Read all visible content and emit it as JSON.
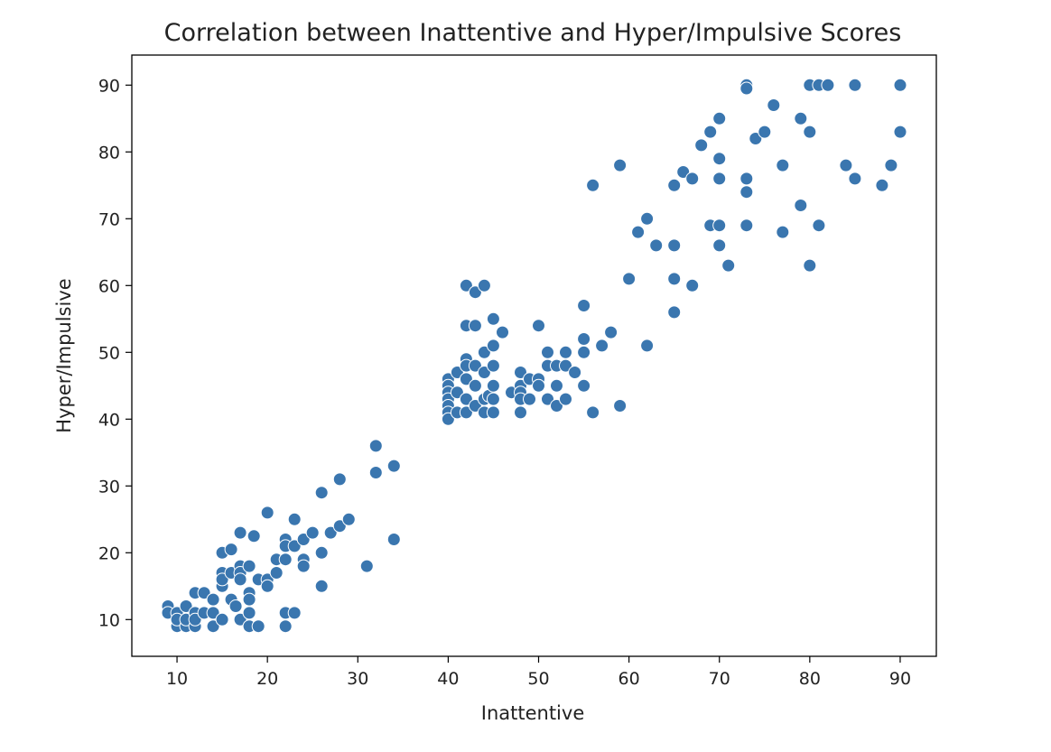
{
  "chart_data": {
    "type": "scatter",
    "title": "Correlation between Inattentive and Hyper/Impulsive Scores",
    "xlabel": "Inattentive",
    "ylabel": "Hyper/Impulsive",
    "xlim": [
      5,
      94
    ],
    "ylim": [
      4.5,
      94.5
    ],
    "xticks": [
      10,
      20,
      30,
      40,
      50,
      60,
      70,
      80,
      90
    ],
    "yticks": [
      10,
      20,
      30,
      40,
      50,
      60,
      70,
      80,
      90
    ],
    "grid": false,
    "marker_color": "#3a76af",
    "marker_edge_color": "#ffffff",
    "points": [
      [
        9,
        12
      ],
      [
        9,
        11
      ],
      [
        10,
        9
      ],
      [
        10,
        11
      ],
      [
        10,
        10
      ],
      [
        11,
        9
      ],
      [
        11,
        12
      ],
      [
        11,
        10
      ],
      [
        12,
        14
      ],
      [
        12,
        9
      ],
      [
        12,
        11
      ],
      [
        12,
        10
      ],
      [
        13,
        14
      ],
      [
        13,
        11
      ],
      [
        14,
        13
      ],
      [
        14,
        9
      ],
      [
        14,
        11
      ],
      [
        15,
        10
      ],
      [
        15,
        20
      ],
      [
        15,
        17
      ],
      [
        15,
        15
      ],
      [
        15,
        16
      ],
      [
        16,
        20.5
      ],
      [
        16,
        13
      ],
      [
        16,
        17
      ],
      [
        16.5,
        12
      ],
      [
        17,
        23
      ],
      [
        17,
        18
      ],
      [
        17,
        17
      ],
      [
        17,
        16
      ],
      [
        17,
        10
      ],
      [
        18,
        18
      ],
      [
        18,
        14
      ],
      [
        18,
        13
      ],
      [
        18,
        11
      ],
      [
        18,
        9
      ],
      [
        18.5,
        22.5
      ],
      [
        19,
        16
      ],
      [
        19,
        9
      ],
      [
        20,
        26
      ],
      [
        20,
        16
      ],
      [
        20,
        15
      ],
      [
        21,
        19
      ],
      [
        21,
        17
      ],
      [
        22,
        22
      ],
      [
        22,
        21
      ],
      [
        22,
        19
      ],
      [
        22,
        11
      ],
      [
        22,
        9
      ],
      [
        23,
        25
      ],
      [
        23,
        21
      ],
      [
        23,
        11
      ],
      [
        24,
        22
      ],
      [
        24,
        19
      ],
      [
        24,
        18
      ],
      [
        25,
        23
      ],
      [
        26,
        29
      ],
      [
        26,
        20
      ],
      [
        26,
        15
      ],
      [
        27,
        23
      ],
      [
        28,
        31
      ],
      [
        28,
        24
      ],
      [
        29,
        25
      ],
      [
        31,
        18
      ],
      [
        32,
        36
      ],
      [
        32,
        32
      ],
      [
        34,
        33
      ],
      [
        34,
        22
      ],
      [
        40,
        46
      ],
      [
        40,
        45
      ],
      [
        40,
        44
      ],
      [
        40,
        43
      ],
      [
        40,
        42
      ],
      [
        40,
        41
      ],
      [
        40,
        40
      ],
      [
        41,
        47
      ],
      [
        41,
        44
      ],
      [
        41,
        41
      ],
      [
        42,
        60
      ],
      [
        42,
        54
      ],
      [
        42,
        49
      ],
      [
        42,
        48
      ],
      [
        42,
        46
      ],
      [
        42,
        43
      ],
      [
        42,
        41
      ],
      [
        43,
        59
      ],
      [
        43,
        54
      ],
      [
        43,
        48
      ],
      [
        43,
        45
      ],
      [
        43,
        42
      ],
      [
        44,
        60
      ],
      [
        44,
        50
      ],
      [
        44,
        47
      ],
      [
        44,
        43
      ],
      [
        44,
        41
      ],
      [
        44.5,
        43.5
      ],
      [
        45,
        55
      ],
      [
        45,
        51
      ],
      [
        45,
        48
      ],
      [
        45,
        45
      ],
      [
        45,
        43
      ],
      [
        45,
        41
      ],
      [
        46,
        53
      ],
      [
        47,
        44
      ],
      [
        48,
        47
      ],
      [
        48,
        45
      ],
      [
        48,
        44
      ],
      [
        48,
        43
      ],
      [
        48,
        41
      ],
      [
        49,
        43
      ],
      [
        49,
        46
      ],
      [
        50,
        54
      ],
      [
        50,
        46
      ],
      [
        50,
        45
      ],
      [
        51,
        50
      ],
      [
        51,
        48
      ],
      [
        51,
        43
      ],
      [
        52,
        48
      ],
      [
        52,
        45
      ],
      [
        52,
        42
      ],
      [
        53,
        50
      ],
      [
        53,
        48
      ],
      [
        53,
        43
      ],
      [
        54,
        47
      ],
      [
        55,
        57
      ],
      [
        55,
        52
      ],
      [
        55,
        50
      ],
      [
        55,
        45
      ],
      [
        56,
        75
      ],
      [
        56,
        41
      ],
      [
        57,
        51
      ],
      [
        58,
        53
      ],
      [
        59,
        78
      ],
      [
        59,
        42
      ],
      [
        60,
        61
      ],
      [
        61,
        68
      ],
      [
        62,
        70
      ],
      [
        62,
        51
      ],
      [
        63,
        66
      ],
      [
        65,
        75
      ],
      [
        65,
        66
      ],
      [
        65,
        61
      ],
      [
        65,
        56
      ],
      [
        66,
        77
      ],
      [
        67,
        76
      ],
      [
        67,
        60
      ],
      [
        68,
        81
      ],
      [
        69,
        83
      ],
      [
        69,
        69
      ],
      [
        70,
        85
      ],
      [
        70,
        79
      ],
      [
        70,
        76
      ],
      [
        70,
        69
      ],
      [
        70,
        66
      ],
      [
        71,
        63
      ],
      [
        73,
        90
      ],
      [
        73,
        89.5
      ],
      [
        73,
        76
      ],
      [
        73,
        74
      ],
      [
        73,
        69
      ],
      [
        74,
        82
      ],
      [
        75,
        83
      ],
      [
        76,
        87
      ],
      [
        77,
        78
      ],
      [
        77,
        68
      ],
      [
        79,
        85
      ],
      [
        79,
        72
      ],
      [
        80,
        90
      ],
      [
        80,
        83
      ],
      [
        80,
        63
      ],
      [
        81,
        90
      ],
      [
        81,
        69
      ],
      [
        82,
        90
      ],
      [
        84,
        78
      ],
      [
        85,
        90
      ],
      [
        85,
        76
      ],
      [
        88,
        75
      ],
      [
        89,
        78
      ],
      [
        90,
        90
      ],
      [
        90,
        83
      ]
    ]
  }
}
